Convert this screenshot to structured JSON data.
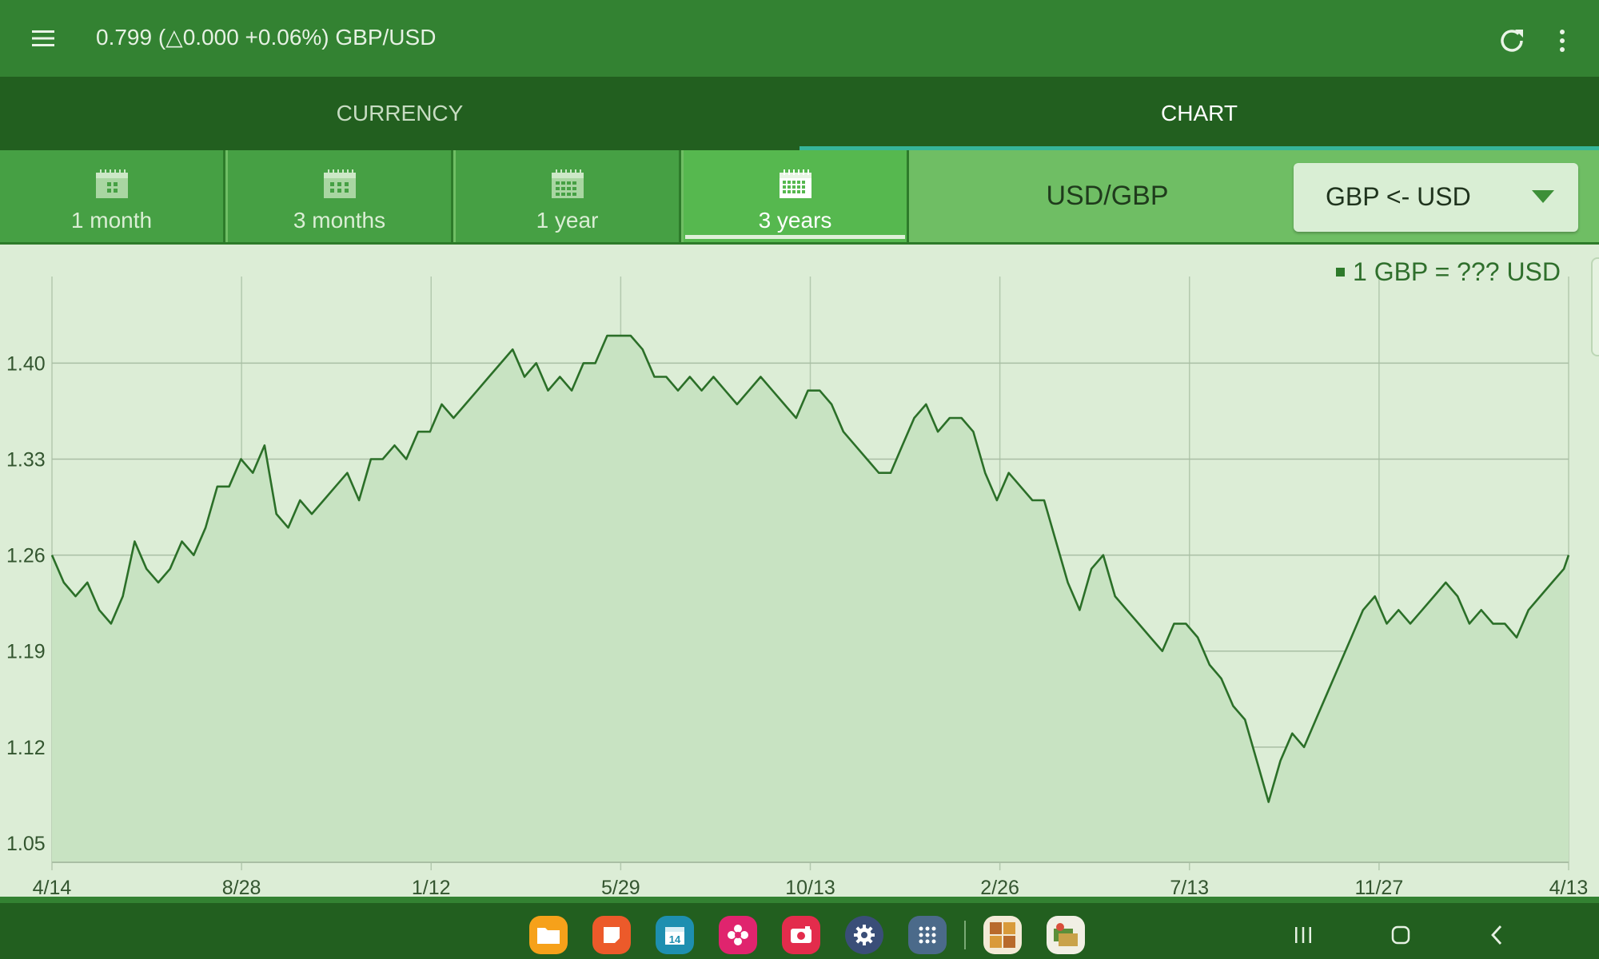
{
  "appbar": {
    "title": "0.799 (△0.000 +0.06%)  GBP/USD",
    "menu_icon": "hamburger-menu-icon",
    "refresh_icon": "refresh-icon",
    "overflow_icon": "more-vertical-icon"
  },
  "main_tabs": [
    {
      "label": "CURRENCY",
      "active": false
    },
    {
      "label": "CHART",
      "active": true
    }
  ],
  "period_tabs": [
    {
      "label": "1 month",
      "icon": "calendar-icon",
      "active": false
    },
    {
      "label": "3 months",
      "icon": "calendar-icon",
      "active": false
    },
    {
      "label": "1 year",
      "icon": "calendar-icon",
      "active": false
    },
    {
      "label": "3 years",
      "icon": "calendar-icon",
      "active": true
    }
  ],
  "pair_label": "USD/GBP",
  "direction_select": {
    "value": "GBP <- USD",
    "icon": "dropdown-arrow-icon"
  },
  "colors": {
    "appbar": "#338232",
    "tabs": "#225f1f",
    "accent": "#36b59a",
    "line": "#2b6f28",
    "fill": "#c8e3c2"
  },
  "chart_data": {
    "type": "area",
    "title": "",
    "legend": [
      "1 GBP = ??? USD"
    ],
    "legend_position": "top-right",
    "grid": true,
    "x_ticks": [
      "4/14",
      "8/28",
      "1/12",
      "5/29",
      "10/13",
      "2/26",
      "7/13",
      "11/27",
      "4/13"
    ],
    "y_ticks": [
      "1.40",
      "1.33",
      "1.26",
      "1.19",
      "1.12",
      "1.05"
    ],
    "ylim": [
      1.036,
      1.455
    ],
    "series": [
      {
        "name": "1 GBP = ??? USD",
        "points": [
          [
            0,
            1.26
          ],
          [
            0.5,
            1.24
          ],
          [
            1,
            1.23
          ],
          [
            1.5,
            1.24
          ],
          [
            2,
            1.22
          ],
          [
            2.5,
            1.21
          ],
          [
            3,
            1.23
          ],
          [
            3.5,
            1.27
          ],
          [
            4,
            1.25
          ],
          [
            4.5,
            1.24
          ],
          [
            5,
            1.25
          ],
          [
            5.5,
            1.27
          ],
          [
            6,
            1.26
          ],
          [
            6.5,
            1.28
          ],
          [
            7,
            1.31
          ],
          [
            7.5,
            1.31
          ],
          [
            8,
            1.33
          ],
          [
            8.5,
            1.32
          ],
          [
            9,
            1.34
          ],
          [
            9.5,
            1.29
          ],
          [
            10,
            1.28
          ],
          [
            10.5,
            1.3
          ],
          [
            11,
            1.29
          ],
          [
            11.5,
            1.3
          ],
          [
            12,
            1.31
          ],
          [
            12.5,
            1.32
          ],
          [
            13,
            1.3
          ],
          [
            13.5,
            1.33
          ],
          [
            14,
            1.33
          ],
          [
            14.5,
            1.34
          ],
          [
            15,
            1.33
          ],
          [
            15.5,
            1.35
          ],
          [
            16,
            1.35
          ],
          [
            16.5,
            1.37
          ],
          [
            17,
            1.36
          ],
          [
            17.5,
            1.37
          ],
          [
            18,
            1.38
          ],
          [
            18.5,
            1.39
          ],
          [
            19,
            1.4
          ],
          [
            19.5,
            1.41
          ],
          [
            20,
            1.39
          ],
          [
            20.5,
            1.4
          ],
          [
            21,
            1.38
          ],
          [
            21.5,
            1.39
          ],
          [
            22,
            1.38
          ],
          [
            22.5,
            1.4
          ],
          [
            23,
            1.4
          ],
          [
            23.5,
            1.42
          ],
          [
            24,
            1.42
          ],
          [
            24.5,
            1.42
          ],
          [
            25,
            1.41
          ],
          [
            25.5,
            1.39
          ],
          [
            26,
            1.39
          ],
          [
            26.5,
            1.38
          ],
          [
            27,
            1.39
          ],
          [
            27.5,
            1.38
          ],
          [
            28,
            1.39
          ],
          [
            28.5,
            1.38
          ],
          [
            29,
            1.37
          ],
          [
            29.5,
            1.38
          ],
          [
            30,
            1.39
          ],
          [
            30.5,
            1.38
          ],
          [
            31,
            1.37
          ],
          [
            31.5,
            1.36
          ],
          [
            32,
            1.38
          ],
          [
            32.5,
            1.38
          ],
          [
            33,
            1.37
          ],
          [
            33.5,
            1.35
          ],
          [
            34,
            1.34
          ],
          [
            34.5,
            1.33
          ],
          [
            35,
            1.32
          ],
          [
            35.5,
            1.32
          ],
          [
            36,
            1.34
          ],
          [
            36.5,
            1.36
          ],
          [
            37,
            1.37
          ],
          [
            37.5,
            1.35
          ],
          [
            38,
            1.36
          ],
          [
            38.5,
            1.36
          ],
          [
            39,
            1.35
          ],
          [
            39.5,
            1.32
          ],
          [
            40,
            1.3
          ],
          [
            40.5,
            1.32
          ],
          [
            41,
            1.31
          ],
          [
            41.5,
            1.3
          ],
          [
            42,
            1.3
          ],
          [
            42.5,
            1.27
          ],
          [
            43,
            1.24
          ],
          [
            43.5,
            1.22
          ],
          [
            44,
            1.25
          ],
          [
            44.5,
            1.26
          ],
          [
            45,
            1.23
          ],
          [
            45.5,
            1.22
          ],
          [
            46,
            1.21
          ],
          [
            46.5,
            1.2
          ],
          [
            47,
            1.19
          ],
          [
            47.5,
            1.21
          ],
          [
            48,
            1.21
          ],
          [
            48.5,
            1.2
          ],
          [
            49,
            1.18
          ],
          [
            49.5,
            1.17
          ],
          [
            50,
            1.15
          ],
          [
            50.5,
            1.14
          ],
          [
            51,
            1.11
          ],
          [
            51.5,
            1.08
          ],
          [
            52,
            1.11
          ],
          [
            52.5,
            1.13
          ],
          [
            53,
            1.12
          ],
          [
            53.5,
            1.14
          ],
          [
            54,
            1.16
          ],
          [
            54.5,
            1.18
          ],
          [
            55,
            1.2
          ],
          [
            55.5,
            1.22
          ],
          [
            56,
            1.23
          ],
          [
            56.5,
            1.21
          ],
          [
            57,
            1.22
          ],
          [
            57.5,
            1.21
          ],
          [
            58,
            1.22
          ],
          [
            58.5,
            1.23
          ],
          [
            59,
            1.24
          ],
          [
            59.5,
            1.23
          ],
          [
            60,
            1.21
          ],
          [
            60.5,
            1.22
          ],
          [
            61,
            1.21
          ],
          [
            61.5,
            1.21
          ],
          [
            62,
            1.2
          ],
          [
            62.5,
            1.22
          ],
          [
            63,
            1.23
          ],
          [
            63.5,
            1.24
          ],
          [
            64,
            1.25
          ],
          [
            64.2,
            1.26
          ]
        ]
      }
    ]
  }
}
